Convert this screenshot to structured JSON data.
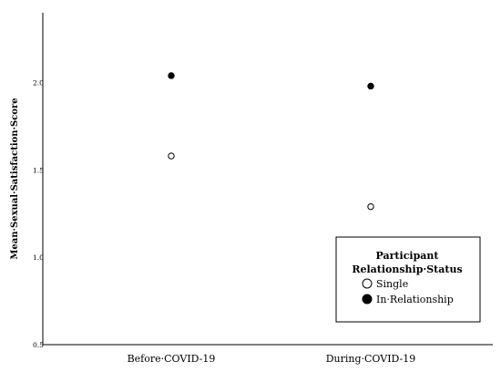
{
  "chart_data": {
    "type": "scatter",
    "categories": [
      "Before·COVID-19",
      "During·COVID-19"
    ],
    "ylabel": "Mean·Sexual·Satisfaction·Score",
    "ylim": [
      0.5,
      2.4
    ],
    "yticks": [
      "0.5",
      "1.0",
      "1.5",
      "2.0"
    ],
    "grid": false,
    "legend": {
      "title_line1": "Participant",
      "title_line2": "Relationship·Status",
      "placement": "bottom-right"
    },
    "series": [
      {
        "name": "Single",
        "marker": "open-circle",
        "values": [
          1.58,
          1.29
        ]
      },
      {
        "name": "In·Relationship",
        "marker": "filled-circle",
        "values": [
          2.04,
          1.98
        ]
      }
    ],
    "colors": {
      "marker": "#000000",
      "axis": "#000000",
      "background": "#ffffff"
    }
  }
}
